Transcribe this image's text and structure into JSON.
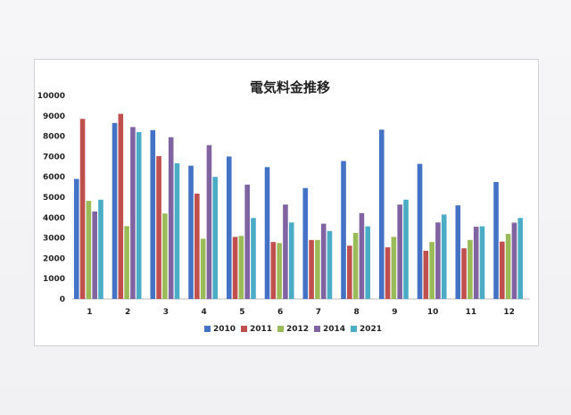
{
  "chart_data": {
    "type": "bar",
    "title": "電気料金推移",
    "categories": [
      "1",
      "2",
      "3",
      "4",
      "5",
      "6",
      "7",
      "8",
      "9",
      "10",
      "11",
      "12"
    ],
    "ylim": [
      0,
      10000
    ],
    "yticks": [
      0,
      1000,
      2000,
      3000,
      4000,
      5000,
      6000,
      7000,
      8000,
      9000,
      10000
    ],
    "grid": false,
    "legend_position": "bottom",
    "series": [
      {
        "name": "2010",
        "color": "#4472c4",
        "values": [
          5900,
          8650,
          8300,
          6550,
          7000,
          6480,
          5450,
          6780,
          8320,
          6640,
          4600,
          5750
        ]
      },
      {
        "name": "2011",
        "color": "#c0504d",
        "values": [
          8850,
          9100,
          7020,
          5180,
          3050,
          2800,
          2900,
          2620,
          2540,
          2370,
          2490,
          2820
        ]
      },
      {
        "name": "2012",
        "color": "#9bbb59",
        "values": [
          4820,
          3580,
          4200,
          2960,
          3100,
          2750,
          2900,
          3250,
          3050,
          2800,
          2900,
          3200
        ]
      },
      {
        "name": "2014",
        "color": "#8064a2",
        "values": [
          4300,
          8450,
          7950,
          7560,
          5620,
          4640,
          3700,
          4220,
          4640,
          3760,
          3550,
          3750
        ]
      },
      {
        "name": "2021",
        "color": "#4bacc6",
        "values": [
          4880,
          8200,
          6670,
          6000,
          3980,
          3760,
          3340,
          3570,
          4880,
          4150,
          3570,
          3980
        ]
      }
    ]
  }
}
